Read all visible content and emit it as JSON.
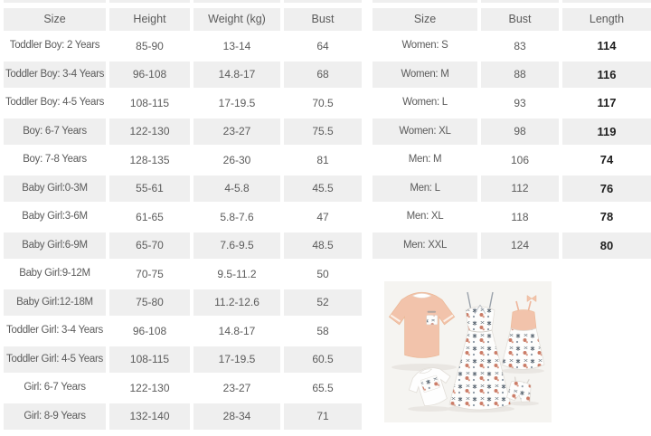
{
  "colors": {
    "row_shade": "#efefef",
    "cell_text": "#5b5b5b",
    "emphasis_text": "#1f1f1f",
    "photo_bg": "#f5f4f1",
    "peach": "#f2c3ab",
    "floral_dark": "#55626e",
    "floral_coral": "#cb7c67"
  },
  "kids_table": {
    "headers": [
      "Size",
      "Height",
      "Weight (kg)",
      "Bust"
    ],
    "rows": [
      [
        "Toddler Boy: 2 Years",
        "85-90",
        "13-14",
        "64"
      ],
      [
        "Toddler Boy: 3-4 Years",
        "96-108",
        "14.8-17",
        "68"
      ],
      [
        "Toddler Boy: 4-5 Years",
        "108-115",
        "17-19.5",
        "70.5"
      ],
      [
        "Boy: 6-7 Years",
        "122-130",
        "23-27",
        "75.5"
      ],
      [
        "Boy: 7-8 Years",
        "128-135",
        "26-30",
        "81"
      ],
      [
        "Baby Girl:0-3M",
        "55-61",
        "4-5.8",
        "45.5"
      ],
      [
        "Baby Girl:3-6M",
        "61-65",
        "5.8-7.6",
        "47"
      ],
      [
        "Baby Girl:6-9M",
        "65-70",
        "7.6-9.5",
        "48.5"
      ],
      [
        "Baby Girl:9-12M",
        "70-75",
        "9.5-11.2",
        "50"
      ],
      [
        "Baby Girl:12-18M",
        "75-80",
        "11.2-12.6",
        "52"
      ],
      [
        "Toddler Girl: 3-4 Years",
        "96-108",
        "14.8-17",
        "58"
      ],
      [
        "Toddler Girl: 4-5 Years",
        "108-115",
        "17-19.5",
        "60.5"
      ],
      [
        "Girl: 6-7 Years",
        "122-130",
        "23-27",
        "65.5"
      ],
      [
        "Girl: 8-9 Years",
        "132-140",
        "28-34",
        "71"
      ]
    ]
  },
  "adults_table": {
    "headers": [
      "Size",
      "Bust",
      "Length"
    ],
    "rows": [
      [
        "Women: S",
        "83",
        "114"
      ],
      [
        "Women: M",
        "88",
        "116"
      ],
      [
        "Women: L",
        "93",
        "117"
      ],
      [
        "Women: XL",
        "98",
        "119"
      ],
      [
        "Men: M",
        "106",
        "74"
      ],
      [
        "Men: L",
        "112",
        "76"
      ],
      [
        "Men: XL",
        "118",
        "78"
      ],
      [
        "Men: XXL",
        "124",
        "80"
      ]
    ]
  }
}
